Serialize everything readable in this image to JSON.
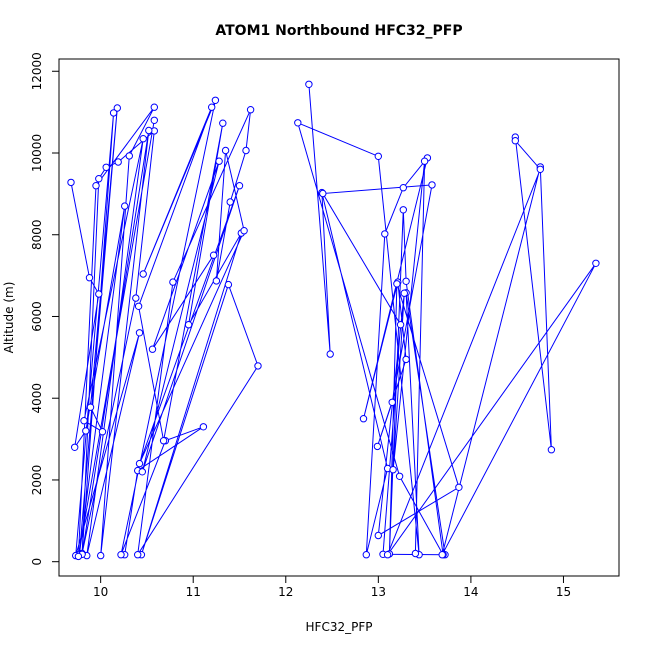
{
  "chart_data": {
    "type": "line",
    "title": "ATOM1 Northbound HFC32_PFP",
    "xlabel": "HFC32_PFP",
    "ylabel": "Altitude (m)",
    "xlim": [
      9.55,
      15.6
    ],
    "ylim": [
      -350,
      12300
    ],
    "x_ticks": [
      10,
      11,
      12,
      13,
      14,
      15
    ],
    "x_tick_labels": [
      "10",
      "11",
      "12",
      "13",
      "14",
      "15"
    ],
    "y_ticks": [
      0,
      2000,
      4000,
      6000,
      8000,
      10000,
      12000
    ],
    "y_tick_labels": [
      "0",
      "2000",
      "4000",
      "6000",
      "8000",
      "10000",
      "12000"
    ],
    "grid": false,
    "line_color": "#0000ff",
    "series": [
      {
        "x": [
          9.68,
          9.88,
          9.98,
          9.72,
          9.84,
          10.26,
          9.77,
          10.18,
          9.89,
          10.02,
          9.82,
          10.46,
          9.85,
          10.42,
          9.73,
          10.14,
          9.8,
          10.38,
          10.58,
          10.19,
          10.06,
          9.98,
          9.8,
          10.52,
          10.0,
          10.31,
          10.58,
          9.95,
          9.76,
          10.58
        ],
        "y": [
          9280,
          6950,
          6550,
          2800,
          3200,
          8700,
          180,
          11100,
          3780,
          3180,
          3450,
          10350,
          150,
          5600,
          150,
          10980,
          200,
          6450,
          10540,
          9780,
          9650,
          9370,
          180,
          10550,
          150,
          9930,
          11120,
          9200,
          130,
          10800
        ]
      },
      {
        "x": [
          10.26,
          10.4,
          11.11,
          10.7,
          10.22,
          11.24,
          10.46,
          11.2,
          10.41,
          10.68,
          11.32,
          10.95,
          11.52,
          10.44,
          11.38,
          11.7,
          10.4,
          10.78,
          11.62,
          11.57,
          11.4,
          11.25,
          11.35,
          11.55,
          10.42,
          11.5,
          10.45,
          11.28,
          10.56,
          11.22
        ],
        "y": [
          170,
          2230,
          3300,
          2960,
          170,
          11290,
          7040,
          11120,
          6250,
          2960,
          10730,
          5800,
          8040,
          170,
          6780,
          4790,
          170,
          6840,
          11060,
          10060,
          8800,
          6870,
          10060,
          8100,
          2400,
          9200,
          2200,
          9800,
          5200,
          7500
        ]
      },
      {
        "x": [
          12.25,
          12.48,
          12.39,
          13.1,
          12.87,
          13.07,
          13.27,
          13.53,
          12.84,
          13.21,
          13.3,
          12.99,
          13.15,
          13.58,
          12.4,
          13.24,
          13.05,
          13.72,
          13.3,
          13.44,
          13.0,
          12.13,
          13.23,
          13.7,
          13.3,
          13.27,
          13.12,
          13.2,
          13.87,
          13.0,
          13.28,
          13.16,
          13.5,
          13.4
        ],
        "y": [
          11680,
          5080,
          9030,
          2280,
          170,
          8020,
          9150,
          9880,
          3500,
          6840,
          4950,
          2820,
          3900,
          9220,
          9010,
          5800,
          180,
          170,
          6580,
          170,
          9920,
          10740,
          2090,
          170,
          6860,
          8610,
          190,
          6800,
          1820,
          640,
          6570,
          2250,
          9800,
          200
        ]
      },
      {
        "x": [
          14.48,
          14.87,
          14.75,
          13.69,
          15.35,
          13.1,
          14.75,
          14.48
        ],
        "y": [
          10390,
          2740,
          9660,
          170,
          7300,
          170,
          9600,
          10300
        ]
      }
    ]
  }
}
